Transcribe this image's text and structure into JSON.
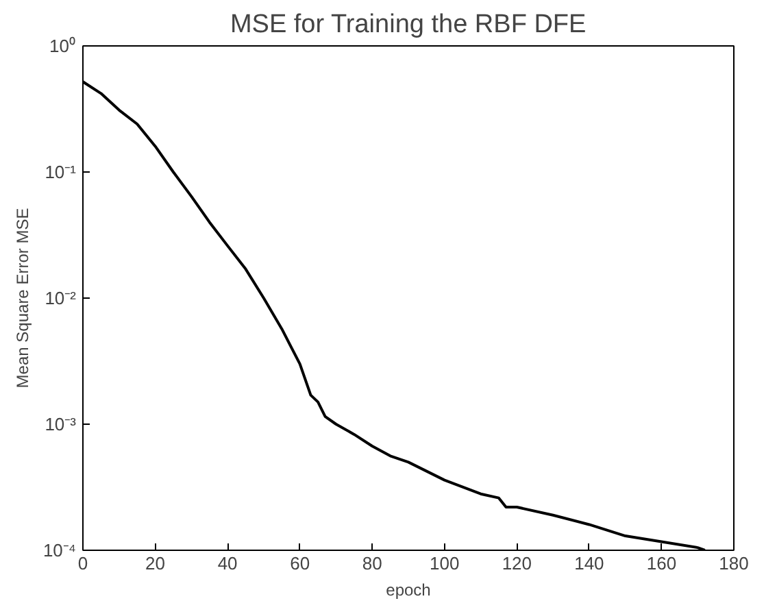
{
  "chart_data": {
    "type": "line",
    "title": "MSE for Training the RBF DFE",
    "xlabel": "epoch",
    "ylabel": "Mean Square Error MSE",
    "x": [
      0,
      5,
      10,
      15,
      20,
      25,
      30,
      35,
      40,
      45,
      50,
      55,
      60,
      63,
      65,
      67,
      70,
      75,
      80,
      85,
      90,
      100,
      110,
      115,
      117,
      120,
      130,
      140,
      150,
      160,
      170,
      172
    ],
    "series": [
      {
        "color": "#000000",
        "values": [
          0.52,
          0.42,
          0.31,
          0.24,
          0.16,
          0.1,
          0.064,
          0.04,
          0.026,
          0.017,
          0.01,
          0.0057,
          0.003,
          0.0017,
          0.0015,
          0.00115,
          0.001,
          0.00083,
          0.00067,
          0.00056,
          0.0005,
          0.00036,
          0.00028,
          0.00026,
          0.00022,
          0.00022,
          0.00019,
          0.00016,
          0.00013,
          0.000117,
          0.000105,
          0.0001
        ]
      }
    ],
    "xlim": [
      0,
      180
    ],
    "xticks": [
      0,
      20,
      40,
      60,
      80,
      100,
      120,
      140,
      160,
      180
    ],
    "ylim": [
      0.0001,
      1
    ],
    "yticks": [
      {
        "value": 0.0001,
        "label": "10⁻⁴"
      },
      {
        "value": 0.001,
        "label": "10⁻³"
      },
      {
        "value": 0.01,
        "label": "10⁻²"
      },
      {
        "value": 0.1,
        "label": "10⁻¹"
      },
      {
        "value": 1,
        "label": "10⁰"
      }
    ],
    "log": "y",
    "grid": false
  }
}
